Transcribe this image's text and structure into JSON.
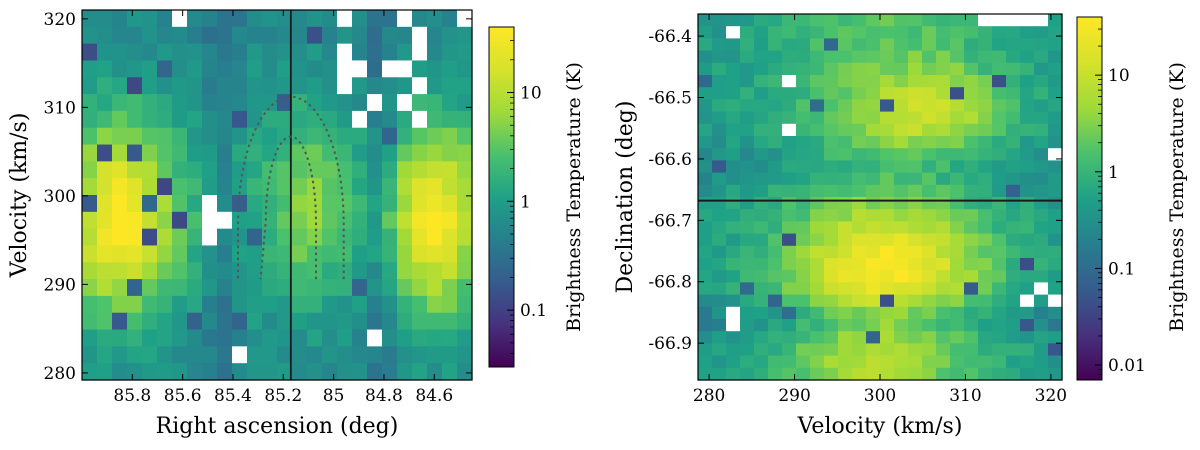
{
  "chart_data": [
    {
      "type": "heatmap",
      "panel": "left",
      "xlabel": "Right ascension (deg)",
      "ylabel": "Velocity (km/s)",
      "xlim": [
        86.0,
        84.45
      ],
      "ylim": [
        279.2,
        321.0
      ],
      "xticks": [
        85.8,
        85.6,
        85.4,
        85.2,
        85.0,
        84.8,
        84.6
      ],
      "xtick_labels": [
        "85.8",
        "85.6",
        "85.4",
        "85.2",
        "85",
        "84.8",
        "84.6"
      ],
      "yticks": [
        280,
        290,
        300,
        310,
        320
      ],
      "ytick_labels": [
        "280",
        "290",
        "300",
        "310",
        "320"
      ],
      "grid": false,
      "vertical_line_x": 85.17,
      "emission_peaks": [
        {
          "x": 85.85,
          "y": 297,
          "level": 1.0
        },
        {
          "x": 84.6,
          "y": 297,
          "level": 0.98
        },
        {
          "x": 85.1,
          "y": 299,
          "level": 0.72
        }
      ],
      "outer_contour": {
        "x": [
          85.38,
          85.38,
          85.17,
          84.96,
          84.96
        ],
        "y": [
          290.6,
          297,
          311.2,
          297,
          290.6
        ]
      },
      "inner_contour": {
        "x": [
          85.29,
          85.29,
          85.17,
          85.07,
          85.07
        ],
        "y": [
          290.6,
          297,
          306.7,
          297,
          290.6
        ]
      },
      "colorbar": {
        "label": "Brightness Temperature (K)",
        "scale": "log",
        "range": [
          0.03,
          40
        ],
        "ticks": [
          0.1,
          1,
          10
        ],
        "tick_labels": [
          "0.1",
          "1",
          "10"
        ],
        "colormap": "viridis"
      }
    },
    {
      "type": "heatmap",
      "panel": "right",
      "xlabel": "Velocity (km/s)",
      "ylabel": "Declination (deg)",
      "xlim": [
        278.7,
        321.3
      ],
      "ylim": [
        -66.96,
        -66.364
      ],
      "xticks": [
        280,
        290,
        300,
        310,
        320
      ],
      "xtick_labels": [
        "280",
        "290",
        "300",
        "310",
        "320"
      ],
      "yticks": [
        -66.9,
        -66.8,
        -66.7,
        -66.6,
        -66.5,
        -66.4
      ],
      "ytick_labels": [
        "-66.9",
        "-66.8",
        "-66.7",
        "-66.6",
        "-66.5",
        "-66.4"
      ],
      "grid": false,
      "horizontal_line_y": -66.668,
      "emission_peaks": [
        {
          "x": 301,
          "y": -66.775,
          "level": 1.0
        },
        {
          "x": 307,
          "y": -66.52,
          "level": 0.85
        },
        {
          "x": 300,
          "y": -66.93,
          "level": 0.7
        }
      ],
      "colorbar": {
        "label": "Brightness Temperature (K)",
        "scale": "log",
        "range": [
          0.007,
          40
        ],
        "ticks": [
          0.01,
          0.1,
          1,
          10
        ],
        "tick_labels": [
          "0.01",
          "0.1",
          "1",
          "10"
        ],
        "colormap": "viridis"
      }
    }
  ]
}
